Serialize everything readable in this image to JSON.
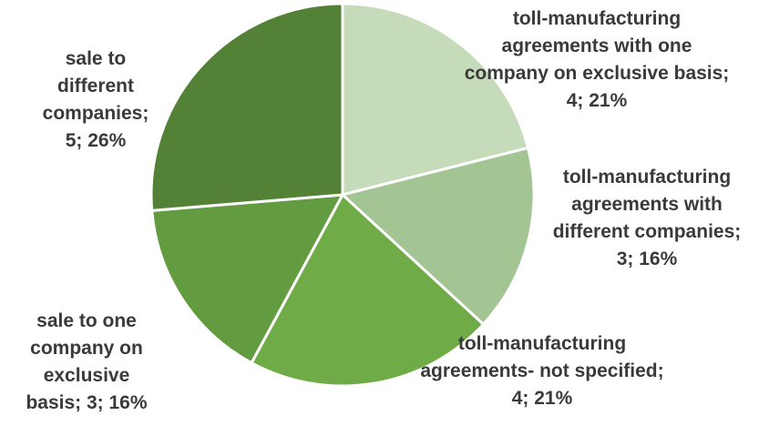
{
  "chart_data": {
    "type": "pie",
    "slices": [
      {
        "category": "toll-manufacturing agreements with one company on exclusive basis",
        "value": 4,
        "percent": "21%",
        "color": "#c5dbb9",
        "label_lines": [
          "toll-manufacturing",
          "agreements with one",
          "company on exclusive basis;",
          "4; 21%"
        ]
      },
      {
        "category": "toll-manufacturing agreements with different companies",
        "value": 3,
        "percent": "16%",
        "color": "#a3c593",
        "label_lines": [
          "toll-manufacturing",
          "agreements with",
          "different companies;",
          "3; 16%"
        ]
      },
      {
        "category": "toll-manufacturing agreements- not specified",
        "value": 4,
        "percent": "21%",
        "color": "#6fac47",
        "label_lines": [
          "toll-manufacturing",
          "agreements- not specified;",
          "4; 21%"
        ]
      },
      {
        "category": "sale to one company on exclusive basis",
        "value": 3,
        "percent": "16%",
        "color": "#629b40",
        "label_lines": [
          "sale to one",
          "company on",
          "exclusive",
          "basis; 3; 16%"
        ]
      },
      {
        "category": "sale to different companies",
        "value": 5,
        "percent": "26%",
        "color": "#538135",
        "label_lines": [
          "sale to",
          "different",
          "companies;",
          "5; 26%"
        ]
      }
    ]
  }
}
